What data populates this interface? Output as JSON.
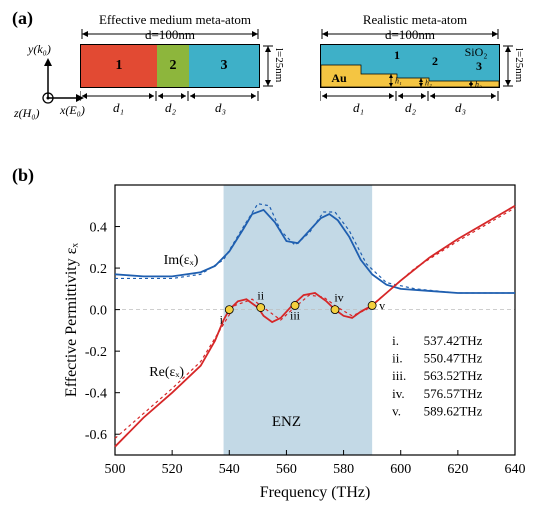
{
  "panelA": {
    "label": "(a)",
    "left": {
      "title": "Effective medium meta-atom",
      "d_label": "d=100nm",
      "l_label": "l=25nm",
      "d1": "d₁",
      "d2": "d₂",
      "d3": "d₃",
      "regions": [
        {
          "label": "1",
          "color": "#e24a33"
        },
        {
          "label": "2",
          "color": "#8db63c"
        },
        {
          "label": "3",
          "color": "#3eb0c8"
        }
      ]
    },
    "right": {
      "title": "Realistic meta-atom",
      "d_label": "d=100nm",
      "l_label": "l=25nm",
      "d1": "d₁",
      "d2": "d₂",
      "d3": "d₃",
      "top_material": "SiO₂",
      "bottom_material": "Au",
      "heights": [
        "h₁",
        "h₂",
        "h₃"
      ],
      "colors": {
        "top": "#3eb0c8",
        "bottom": "#f4c542"
      },
      "steps": [
        {
          "h": 13
        },
        {
          "h": 9
        },
        {
          "h": 6
        }
      ]
    },
    "coords": {
      "y": "y(k₀)",
      "x": "x(E₀)",
      "z": "z(H₀)"
    }
  },
  "panelB": {
    "label": "(b)",
    "chart": {
      "xlabel": "Frequency (THz)",
      "ylabel": "Effective Permittivity εₓ",
      "xlim": [
        500,
        640
      ],
      "ylim": [
        -0.7,
        0.6
      ],
      "xticks": [
        500,
        520,
        540,
        560,
        580,
        600,
        620,
        640
      ],
      "yticks": [
        -0.6,
        -0.4,
        -0.2,
        0.0,
        0.2,
        0.4
      ],
      "re_label": "Re(εₓ)",
      "im_label": "Im(εₓ)",
      "enz_label": "ENZ",
      "enz_x": [
        538,
        590
      ],
      "re_solid": [
        [
          500,
          -0.66
        ],
        [
          510,
          -0.52
        ],
        [
          520,
          -0.4
        ],
        [
          530,
          -0.27
        ],
        [
          535,
          -0.15
        ],
        [
          538,
          -0.05
        ],
        [
          540,
          0
        ],
        [
          543,
          0.04
        ],
        [
          546,
          0.05
        ],
        [
          550,
          0.01
        ],
        [
          552,
          -0.03
        ],
        [
          555,
          -0.06
        ],
        [
          558,
          -0.04
        ],
        [
          562,
          0.02
        ],
        [
          566,
          0.07
        ],
        [
          570,
          0.08
        ],
        [
          574,
          0.04
        ],
        [
          577,
          0
        ],
        [
          580,
          -0.03
        ],
        [
          583,
          -0.04
        ],
        [
          586,
          -0.01
        ],
        [
          590,
          0.02
        ],
        [
          595,
          0.08
        ],
        [
          600,
          0.14
        ],
        [
          610,
          0.25
        ],
        [
          620,
          0.34
        ],
        [
          630,
          0.42
        ],
        [
          640,
          0.5
        ]
      ],
      "re_dashed": [
        [
          500,
          -0.62
        ],
        [
          510,
          -0.5
        ],
        [
          520,
          -0.38
        ],
        [
          530,
          -0.25
        ],
        [
          538,
          -0.07
        ],
        [
          542,
          0.02
        ],
        [
          548,
          0.05
        ],
        [
          553,
          0.0
        ],
        [
          558,
          -0.05
        ],
        [
          562,
          0.0
        ],
        [
          568,
          0.07
        ],
        [
          573,
          0.06
        ],
        [
          578,
          0.01
        ],
        [
          583,
          -0.03
        ],
        [
          588,
          0.0
        ],
        [
          595,
          0.08
        ],
        [
          605,
          0.2
        ],
        [
          620,
          0.33
        ],
        [
          640,
          0.49
        ]
      ],
      "im_solid": [
        [
          500,
          0.17
        ],
        [
          510,
          0.16
        ],
        [
          520,
          0.16
        ],
        [
          530,
          0.18
        ],
        [
          535,
          0.21
        ],
        [
          540,
          0.28
        ],
        [
          545,
          0.39
        ],
        [
          548,
          0.46
        ],
        [
          552,
          0.48
        ],
        [
          556,
          0.42
        ],
        [
          560,
          0.33
        ],
        [
          564,
          0.32
        ],
        [
          568,
          0.38
        ],
        [
          572,
          0.44
        ],
        [
          575,
          0.46
        ],
        [
          578,
          0.43
        ],
        [
          582,
          0.35
        ],
        [
          586,
          0.24
        ],
        [
          590,
          0.17
        ],
        [
          595,
          0.12
        ],
        [
          600,
          0.1
        ],
        [
          610,
          0.09
        ],
        [
          620,
          0.08
        ],
        [
          640,
          0.08
        ]
      ],
      "im_dashed": [
        [
          500,
          0.15
        ],
        [
          510,
          0.15
        ],
        [
          520,
          0.15
        ],
        [
          530,
          0.17
        ],
        [
          538,
          0.24
        ],
        [
          545,
          0.4
        ],
        [
          550,
          0.51
        ],
        [
          554,
          0.5
        ],
        [
          558,
          0.38
        ],
        [
          563,
          0.31
        ],
        [
          568,
          0.37
        ],
        [
          573,
          0.47
        ],
        [
          577,
          0.47
        ],
        [
          582,
          0.38
        ],
        [
          588,
          0.22
        ],
        [
          595,
          0.13
        ],
        [
          605,
          0.1
        ],
        [
          620,
          0.08
        ],
        [
          640,
          0.08
        ]
      ],
      "markers": [
        {
          "x": 540,
          "y": 0,
          "lbl": "i"
        },
        {
          "x": 551,
          "y": 0.01,
          "lbl": "ii"
        },
        {
          "x": 563,
          "y": 0.02,
          "lbl": "iii"
        },
        {
          "x": 577,
          "y": 0,
          "lbl": "iv"
        },
        {
          "x": 590,
          "y": 0.02,
          "lbl": "v"
        }
      ],
      "marker_color": "#f4d03f",
      "re_color": "#d62728",
      "im_color": "#1f5fb0",
      "enz_fill": "#c3d9e6",
      "freq_list": [
        {
          "k": "i.",
          "v": "537.42THz"
        },
        {
          "k": "ii.",
          "v": "550.47THz"
        },
        {
          "k": "iii.",
          "v": "563.52THz"
        },
        {
          "k": "iv.",
          "v": "576.57THz"
        },
        {
          "k": "v.",
          "v": "589.62THz"
        }
      ]
    }
  }
}
